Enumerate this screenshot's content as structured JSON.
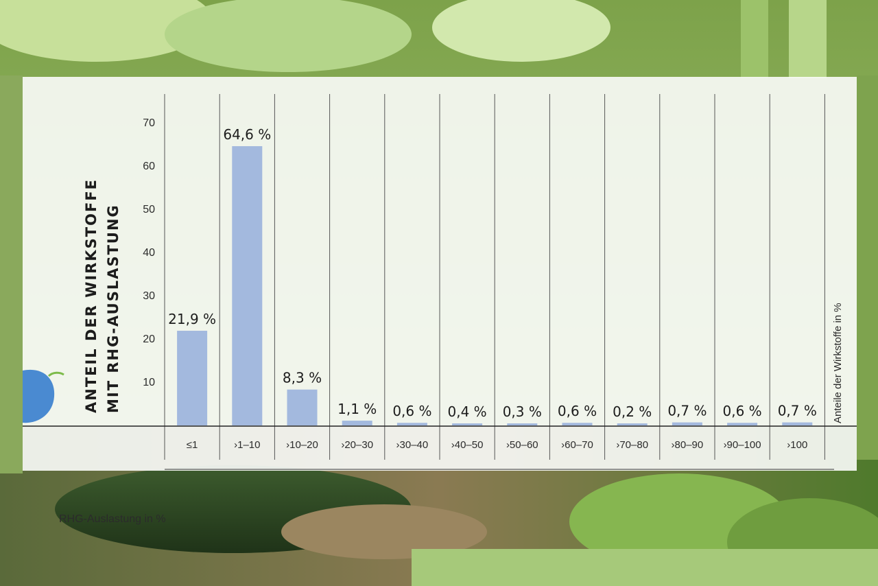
{
  "chart_data": {
    "type": "bar",
    "ylabel_line1": "ANTEIL DER WIRKSTOFFE",
    "ylabel_line2": "MIT RHG-AUSLASTUNG",
    "xlabel": "RHG-Auslastung in %",
    "right_label": "Anteile der Wirkstoffe in %",
    "ylim": [
      0,
      70
    ],
    "yticks": [
      10,
      20,
      30,
      40,
      50,
      60,
      70
    ],
    "categories": [
      "≤1",
      "›1–10",
      "›10–20",
      "›20–30",
      "›30–40",
      "›40–50",
      "›50–60",
      "›60–70",
      "›70–80",
      "›80–90",
      "›90–100",
      "›100"
    ],
    "values": [
      21.9,
      64.6,
      8.3,
      1.1,
      0.6,
      0.4,
      0.3,
      0.6,
      0.2,
      0.7,
      0.6,
      0.7
    ],
    "value_labels": [
      "21,9 %",
      "64,6 %",
      "8,3 %",
      "1,1 %",
      "0,6 %",
      "0,4 %",
      "0,3 %",
      "0,6 %",
      "0,2 %",
      "0,7 %",
      "0,6 %",
      "0,7 %"
    ],
    "bar_color": "#a3b9de",
    "grid": "vertical"
  },
  "colors": {
    "leaf_light": "#b9d98e",
    "leaf_dark": "#4f7f2a",
    "soil": "#8a7450",
    "zucchini": "#2f4a26",
    "accent_blue": "#4a8ad1"
  }
}
